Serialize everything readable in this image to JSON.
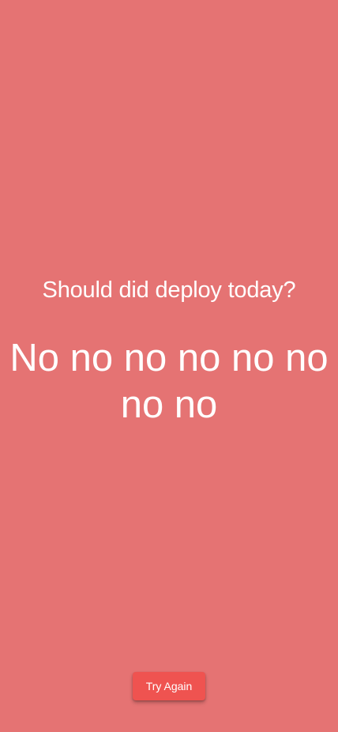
{
  "page": {
    "background_color": "#e57373",
    "text_color": "#ffffff"
  },
  "main": {
    "question": "Should did deploy today?",
    "answer": "No no no no no no no no"
  },
  "actions": {
    "try_again_label": "Try Again",
    "button_color": "#ef5350"
  }
}
